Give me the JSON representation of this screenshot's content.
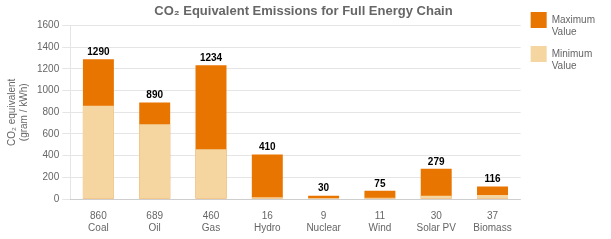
{
  "chart_data": {
    "type": "bar",
    "title": "CO₂ Equivalent Emissions for Full Energy Chain",
    "ylabel": "CO₂ equivalent\n(gram / kWh)",
    "categories": [
      "860\nCoal",
      "689\nOil",
      "460\nGas",
      "16\nHydro",
      "9\nNuclear",
      "11\nWind",
      "30\nSolar PV",
      "37\nBiomass"
    ],
    "series": [
      {
        "name": "Maximum\nValue",
        "color": "#E87500",
        "values": [
          1290,
          890,
          1234,
          410,
          30,
          75,
          279,
          116
        ],
        "data_labels": true
      },
      {
        "name": "Minimum\nValue",
        "color": "#F5D5A0",
        "values": [
          860,
          689,
          460,
          16,
          9,
          11,
          30,
          37
        ]
      }
    ],
    "ylim": [
      0,
      1600
    ],
    "yticks": [
      0,
      200,
      400,
      600,
      800,
      1000,
      1200,
      1400,
      1600
    ],
    "grid": true,
    "legend": "right"
  }
}
